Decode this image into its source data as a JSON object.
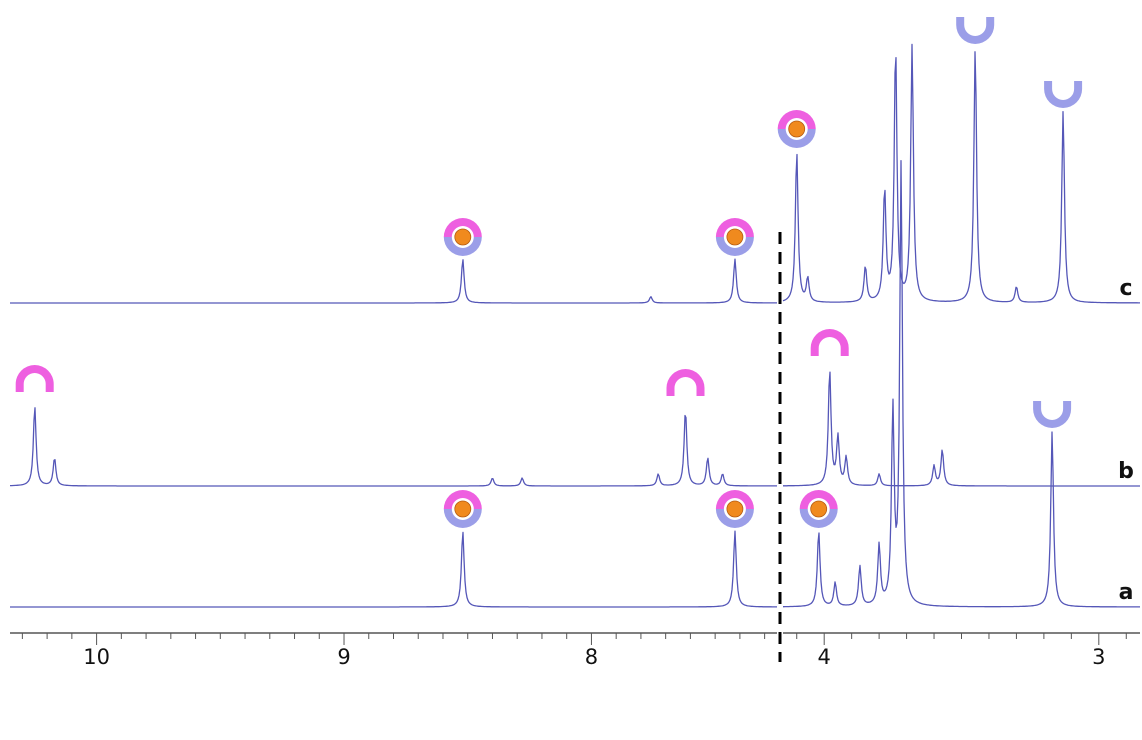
{
  "chart_data": {
    "type": "line",
    "title": "",
    "xlabel": "",
    "ylabel": "",
    "x_axis": {
      "direction": "reversed",
      "broken": true,
      "segments": [
        {
          "xlim": [
            10.35,
            7.25
          ],
          "ticks": [
            10,
            9,
            8
          ]
        },
        {
          "xlim": [
            4.15,
            2.85
          ],
          "ticks": [
            4,
            3
          ]
        }
      ],
      "tick_labels": [
        "10",
        "9",
        "8",
        "4",
        "3"
      ]
    },
    "grid": false,
    "colors": {
      "trace": "#5557b8",
      "magenta": "#ee5fe0",
      "lavender": "#9b9ee8",
      "orange": "#f08a1e"
    },
    "series": [
      {
        "label": "a",
        "peaks": [
          {
            "x": 8.52,
            "height": 0.95,
            "symbol": "host-guest-complex-icon"
          },
          {
            "x": 7.42,
            "height": 0.95,
            "symbol": "host-guest-complex-icon"
          },
          {
            "x": 4.02,
            "height": 0.95,
            "symbol": "host-guest-complex-icon"
          },
          {
            "x": 3.96,
            "height": 0.3
          },
          {
            "x": 3.87,
            "height": 0.5
          },
          {
            "x": 3.8,
            "height": 0.75
          },
          {
            "x": 3.75,
            "height": 2.4
          },
          {
            "x": 3.72,
            "height": 5.5
          },
          {
            "x": 3.17,
            "height": 2.2,
            "symbol": "lavender-arc-icon"
          }
        ]
      },
      {
        "label": "b",
        "peaks": [
          {
            "x": 10.25,
            "height": 1.0,
            "symbol": "magenta-arc-icon"
          },
          {
            "x": 10.17,
            "height": 0.35
          },
          {
            "x": 8.4,
            "height": 0.1
          },
          {
            "x": 8.28,
            "height": 0.1
          },
          {
            "x": 7.73,
            "height": 0.15
          },
          {
            "x": 7.62,
            "height": 0.95,
            "symbol": "magenta-arc-icon"
          },
          {
            "x": 7.53,
            "height": 0.35
          },
          {
            "x": 7.47,
            "height": 0.15
          },
          {
            "x": 3.98,
            "height": 1.45,
            "symbol": "magenta-arc-icon"
          },
          {
            "x": 3.95,
            "height": 0.6
          },
          {
            "x": 3.92,
            "height": 0.35
          },
          {
            "x": 3.8,
            "height": 0.15
          },
          {
            "x": 3.6,
            "height": 0.25
          },
          {
            "x": 3.57,
            "height": 0.45
          }
        ]
      },
      {
        "label": "c",
        "peaks": [
          {
            "x": 8.52,
            "height": 0.55,
            "symbol": "host-guest-complex-icon"
          },
          {
            "x": 7.76,
            "height": 0.08
          },
          {
            "x": 7.42,
            "height": 0.55,
            "symbol": "host-guest-complex-icon"
          },
          {
            "x": 4.1,
            "height": 1.9,
            "symbol": "host-guest-complex-icon"
          },
          {
            "x": 4.06,
            "height": 0.3
          },
          {
            "x": 3.85,
            "height": 0.45
          },
          {
            "x": 3.78,
            "height": 1.4
          },
          {
            "x": 3.74,
            "height": 3.2
          },
          {
            "x": 3.68,
            "height": 3.2
          },
          {
            "x": 3.45,
            "height": 3.2,
            "symbol": "lavender-arc-icon"
          },
          {
            "x": 3.3,
            "height": 0.2
          },
          {
            "x": 3.13,
            "height": 2.4,
            "symbol": "lavender-arc-icon"
          }
        ]
      }
    ]
  }
}
